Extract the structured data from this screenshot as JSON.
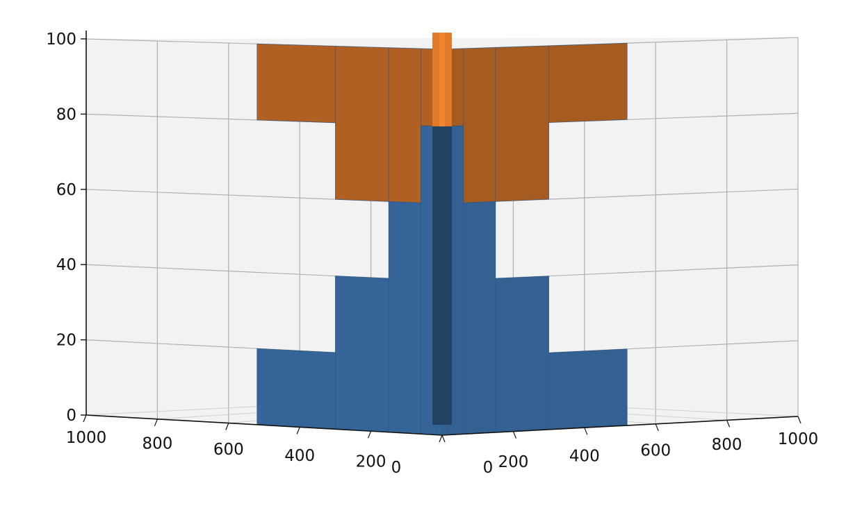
{
  "chart_data": {
    "type": "bar3d",
    "title": "",
    "xlabel": "",
    "ylabel": "",
    "zlabel": "",
    "zlim": [
      0,
      100
    ],
    "x_ticks": [
      "0",
      "200",
      "400",
      "600",
      "800",
      "1000"
    ],
    "y_ticks": [
      "0",
      "200",
      "400",
      "600",
      "800",
      "1000"
    ],
    "z_ticks": [
      "0",
      "20",
      "40",
      "60",
      "80",
      "100"
    ],
    "grid": true,
    "view": "viewed along the x = y diagonal; two mirrored stepped 3D bar stacks",
    "series": [
      {
        "color": "#e07b2c",
        "extent_from_origin": [
          0,
          15,
          60,
          150,
          300,
          520,
          1000
        ],
        "bottom": [
          0,
          20,
          40,
          60,
          80,
          100
        ],
        "top": [
          100,
          100,
          100,
          100,
          100,
          100
        ]
      },
      {
        "color": "#3a6ea5",
        "extent_from_origin": [
          0,
          15,
          60,
          150,
          300,
          520,
          1000
        ],
        "bottom": [
          0,
          0,
          0,
          0,
          0,
          0
        ],
        "top": [
          100,
          80,
          60,
          40,
          20,
          0
        ]
      }
    ],
    "colors": {
      "orange": "#e07b2c",
      "blue": "#3a6ea5",
      "pane": "#f2f2f2",
      "grid": "#b0b0b0"
    }
  }
}
